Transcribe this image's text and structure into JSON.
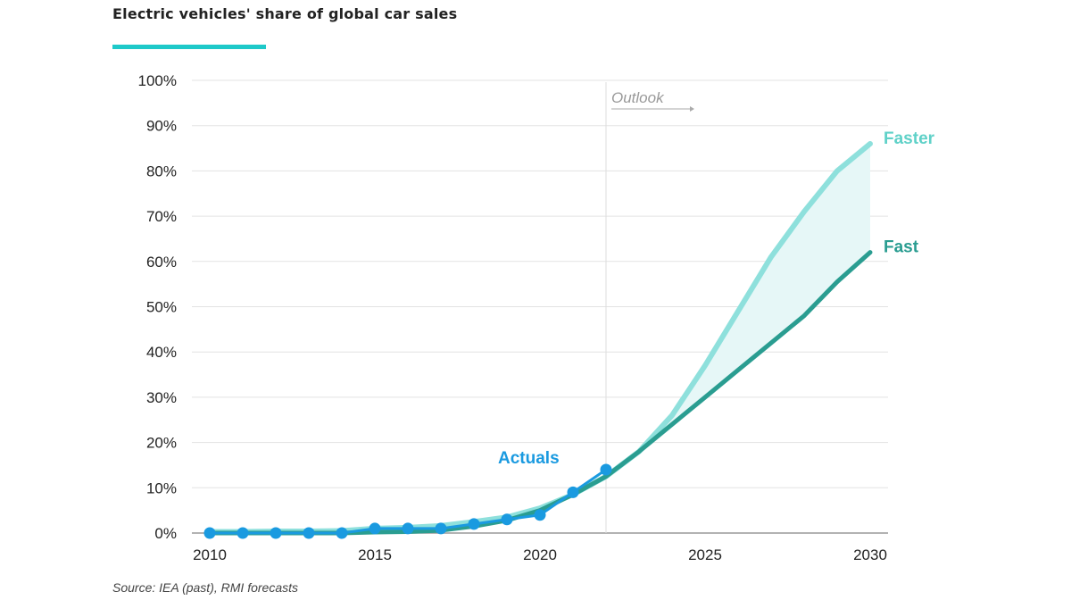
{
  "title": "Electric vehicles' share of global car sales",
  "source": "Source: IEA (past), RMI forecasts",
  "colors": {
    "accent_bar": "#1ec9c9",
    "actuals": "#1a9ae0",
    "faster": "#8ee0dc",
    "fast": "#2a9d91",
    "band": "#e6f7f7"
  },
  "chart_data": {
    "type": "line",
    "title": "Electric vehicles' share of global car sales",
    "xlabel": "",
    "ylabel": "",
    "xlim": [
      2010,
      2030
    ],
    "ylim": [
      0,
      100
    ],
    "x_ticks": [
      "2010",
      "2015",
      "2020",
      "2025",
      "2030"
    ],
    "y_ticks": [
      "0%",
      "10%",
      "20%",
      "30%",
      "40%",
      "50%",
      "60%",
      "70%",
      "80%",
      "90%",
      "100%"
    ],
    "grid": true,
    "outlook_marker": {
      "x": 2022,
      "label": "Outlook"
    },
    "series": [
      {
        "name": "Faster",
        "color": "#8ee0dc",
        "x": [
          2010,
          2011,
          2012,
          2013,
          2014,
          2015,
          2016,
          2017,
          2018,
          2019,
          2020,
          2021,
          2022,
          2023,
          2024,
          2025,
          2026,
          2027,
          2028,
          2029,
          2030
        ],
        "y": [
          0.3,
          0.3,
          0.4,
          0.4,
          0.5,
          1,
          1.2,
          1.6,
          2.5,
          3.5,
          5.5,
          8.5,
          12.5,
          18,
          26,
          37,
          49,
          61,
          71,
          80,
          86
        ]
      },
      {
        "name": "Fast",
        "color": "#2a9d91",
        "x": [
          2010,
          2011,
          2012,
          2013,
          2014,
          2015,
          2016,
          2017,
          2018,
          2019,
          2020,
          2021,
          2022,
          2023,
          2024,
          2025,
          2026,
          2027,
          2028,
          2029,
          2030
        ],
        "y": [
          0,
          0,
          0,
          0,
          0,
          0.2,
          0.3,
          0.6,
          1.5,
          2.8,
          5,
          8.5,
          12.5,
          18,
          24,
          30,
          36,
          42,
          48,
          55.5,
          62
        ]
      },
      {
        "name": "Actuals",
        "color": "#1a9ae0",
        "markers": true,
        "x": [
          2010,
          2011,
          2012,
          2013,
          2014,
          2015,
          2016,
          2017,
          2018,
          2019,
          2020,
          2021,
          2022
        ],
        "y": [
          0,
          0,
          0,
          0,
          0,
          1,
          1,
          1,
          2,
          3,
          4,
          9,
          14
        ]
      }
    ]
  }
}
